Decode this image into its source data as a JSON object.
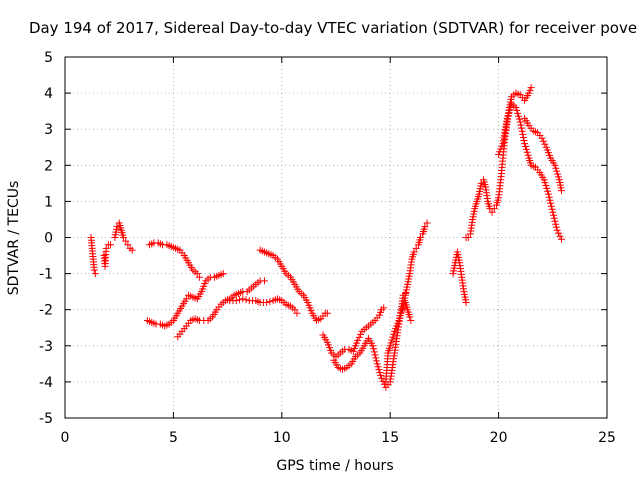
{
  "chart_data": {
    "type": "scatter",
    "title": "Day 194 of 2017, Sidereal Day-to-day VTEC variation (SDTVAR) for receiver pove",
    "xlabel": "GPS time / hours",
    "ylabel": "SDTVAR / TECUs",
    "xlim": [
      0,
      25
    ],
    "ylim": [
      -5,
      5
    ],
    "xticks": [
      0,
      5,
      10,
      15,
      20,
      25
    ],
    "yticks": [
      -5,
      -4,
      -3,
      -2,
      -1,
      0,
      1,
      2,
      3,
      4,
      5
    ],
    "x_tick_labels": [
      "0",
      "5",
      "10",
      "15",
      "20",
      "25"
    ],
    "y_tick_labels": [
      "-5",
      "-4",
      "-3",
      "-2",
      "-1",
      "0",
      "1",
      "2",
      "3",
      "4",
      "5"
    ],
    "grid": true,
    "marker": "plus",
    "series": [
      {
        "color": "#ff0000",
        "segments": [
          [
            [
              1.2,
              0.0
            ],
            [
              1.25,
              -0.3
            ],
            [
              1.3,
              -0.6
            ],
            [
              1.35,
              -0.9
            ],
            [
              1.4,
              -1.0
            ]
          ],
          [
            [
              1.8,
              -0.5
            ],
            [
              1.85,
              -0.8
            ],
            [
              1.9,
              -0.3
            ],
            [
              2.0,
              -0.2
            ],
            [
              2.1,
              -0.2
            ]
          ],
          [
            [
              2.3,
              0.0
            ],
            [
              2.4,
              0.3
            ],
            [
              2.5,
              0.4
            ],
            [
              2.6,
              0.2
            ],
            [
              2.7,
              0.0
            ],
            [
              2.8,
              -0.1
            ],
            [
              2.9,
              -0.2
            ],
            [
              3.0,
              -0.3
            ],
            [
              3.1,
              -0.35
            ]
          ],
          [
            [
              3.9,
              -0.2
            ],
            [
              4.1,
              -0.15
            ],
            [
              4.3,
              -0.15
            ],
            [
              4.5,
              -0.2
            ],
            [
              4.7,
              -0.2
            ],
            [
              4.9,
              -0.25
            ],
            [
              5.1,
              -0.3
            ],
            [
              5.3,
              -0.35
            ],
            [
              5.5,
              -0.5
            ],
            [
              5.7,
              -0.7
            ],
            [
              5.9,
              -0.9
            ],
            [
              6.1,
              -1.0
            ],
            [
              6.2,
              -1.1
            ]
          ],
          [
            [
              3.8,
              -2.3
            ],
            [
              4.0,
              -2.35
            ],
            [
              4.2,
              -2.4
            ],
            [
              4.4,
              -2.4
            ],
            [
              4.6,
              -2.45
            ],
            [
              4.8,
              -2.4
            ],
            [
              5.0,
              -2.3
            ],
            [
              5.2,
              -2.1
            ],
            [
              5.4,
              -1.9
            ],
            [
              5.6,
              -1.7
            ],
            [
              5.7,
              -1.6
            ],
            [
              5.9,
              -1.65
            ],
            [
              6.1,
              -1.7
            ],
            [
              6.3,
              -1.5
            ],
            [
              6.5,
              -1.2
            ],
            [
              6.7,
              -1.1
            ],
            [
              6.9,
              -1.1
            ],
            [
              7.1,
              -1.05
            ],
            [
              7.3,
              -1.0
            ]
          ],
          [
            [
              5.2,
              -2.75
            ],
            [
              5.4,
              -2.6
            ],
            [
              5.6,
              -2.45
            ],
            [
              5.8,
              -2.3
            ],
            [
              6.0,
              -2.25
            ],
            [
              6.2,
              -2.3
            ],
            [
              6.4,
              -2.3
            ],
            [
              6.6,
              -2.3
            ],
            [
              6.8,
              -2.2
            ],
            [
              7.0,
              -2.0
            ],
            [
              7.2,
              -1.85
            ],
            [
              7.4,
              -1.75
            ],
            [
              7.6,
              -1.7
            ],
            [
              7.8,
              -1.6
            ],
            [
              8.0,
              -1.55
            ],
            [
              8.2,
              -1.5
            ],
            [
              8.4,
              -1.5
            ],
            [
              8.6,
              -1.4
            ],
            [
              8.8,
              -1.3
            ],
            [
              9.0,
              -1.2
            ],
            [
              9.2,
              -1.2
            ]
          ],
          [
            [
              7.6,
              -1.75
            ],
            [
              7.9,
              -1.75
            ],
            [
              8.2,
              -1.7
            ],
            [
              8.5,
              -1.75
            ],
            [
              8.8,
              -1.75
            ],
            [
              9.0,
              -1.8
            ],
            [
              9.3,
              -1.8
            ],
            [
              9.6,
              -1.75
            ],
            [
              9.8,
              -1.7
            ],
            [
              10.0,
              -1.75
            ],
            [
              10.2,
              -1.85
            ],
            [
              10.4,
              -1.9
            ],
            [
              10.6,
              -2.0
            ],
            [
              10.7,
              -2.1
            ]
          ],
          [
            [
              9.0,
              -0.35
            ],
            [
              9.2,
              -0.4
            ],
            [
              9.4,
              -0.45
            ],
            [
              9.6,
              -0.5
            ],
            [
              9.8,
              -0.6
            ],
            [
              10.0,
              -0.8
            ],
            [
              10.2,
              -1.0
            ],
            [
              10.4,
              -1.1
            ],
            [
              10.6,
              -1.3
            ],
            [
              10.8,
              -1.5
            ],
            [
              11.0,
              -1.6
            ],
            [
              11.2,
              -1.8
            ],
            [
              11.4,
              -2.1
            ],
            [
              11.6,
              -2.3
            ],
            [
              11.8,
              -2.25
            ],
            [
              12.0,
              -2.1
            ],
            [
              12.1,
              -2.1
            ]
          ],
          [
            [
              11.9,
              -2.7
            ],
            [
              12.1,
              -2.9
            ],
            [
              12.3,
              -3.2
            ],
            [
              12.5,
              -3.3
            ],
            [
              12.7,
              -3.2
            ],
            [
              12.9,
              -3.1
            ],
            [
              13.1,
              -3.1
            ],
            [
              13.3,
              -3.15
            ],
            [
              13.5,
              -2.85
            ],
            [
              13.7,
              -2.6
            ],
            [
              13.9,
              -2.5
            ],
            [
              14.1,
              -2.4
            ],
            [
              14.3,
              -2.3
            ],
            [
              14.5,
              -2.15
            ],
            [
              14.6,
              -2.0
            ],
            [
              14.7,
              -1.95
            ]
          ],
          [
            [
              12.4,
              -3.4
            ],
            [
              12.6,
              -3.6
            ],
            [
              12.8,
              -3.65
            ],
            [
              13.0,
              -3.6
            ],
            [
              13.2,
              -3.5
            ],
            [
              13.4,
              -3.3
            ],
            [
              13.6,
              -3.2
            ],
            [
              13.8,
              -3.0
            ],
            [
              14.0,
              -2.8
            ],
            [
              14.2,
              -3.0
            ],
            [
              14.4,
              -3.5
            ],
            [
              14.6,
              -3.9
            ],
            [
              14.8,
              -4.15
            ],
            [
              15.0,
              -4.0
            ],
            [
              15.1,
              -3.6
            ],
            [
              15.2,
              -3.2
            ],
            [
              15.3,
              -2.8
            ],
            [
              15.4,
              -2.4
            ],
            [
              15.5,
              -2.0
            ],
            [
              15.6,
              -1.6
            ],
            [
              15.7,
              -1.55
            ]
          ],
          [
            [
              14.8,
              -4.0
            ],
            [
              14.9,
              -3.2
            ],
            [
              15.0,
              -3.0
            ],
            [
              15.2,
              -2.6
            ],
            [
              15.4,
              -2.3
            ],
            [
              15.5,
              -2.1
            ],
            [
              15.6,
              -1.9
            ],
            [
              15.7,
              -1.6
            ],
            [
              15.8,
              -1.3
            ],
            [
              15.9,
              -1.0
            ],
            [
              16.0,
              -0.6
            ],
            [
              16.1,
              -0.4
            ],
            [
              16.2,
              -0.3
            ],
            [
              16.3,
              -0.2
            ],
            [
              16.4,
              0.0
            ],
            [
              16.5,
              0.1
            ],
            [
              16.6,
              0.3
            ],
            [
              16.7,
              0.4
            ]
          ],
          [
            [
              15.7,
              -1.8
            ],
            [
              15.8,
              -2.0
            ],
            [
              15.9,
              -2.2
            ],
            [
              15.95,
              -2.3
            ]
          ],
          [
            [
              17.9,
              -1.0
            ],
            [
              18.0,
              -0.7
            ],
            [
              18.1,
              -0.4
            ],
            [
              18.2,
              -0.7
            ],
            [
              18.3,
              -1.1
            ],
            [
              18.4,
              -1.5
            ],
            [
              18.5,
              -1.8
            ]
          ],
          [
            [
              18.5,
              0.0
            ],
            [
              18.6,
              0.0
            ],
            [
              18.7,
              0.1
            ],
            [
              18.8,
              0.5
            ],
            [
              18.9,
              0.8
            ],
            [
              19.0,
              1.0
            ],
            [
              19.1,
              1.2
            ],
            [
              19.2,
              1.5
            ],
            [
              19.3,
              1.6
            ],
            [
              19.4,
              1.4
            ],
            [
              19.5,
              1.0
            ],
            [
              19.6,
              0.8
            ],
            [
              19.7,
              0.7
            ],
            [
              19.8,
              0.8
            ],
            [
              19.9,
              0.9
            ],
            [
              20.0,
              1.1
            ],
            [
              20.1,
              1.6
            ],
            [
              20.2,
              2.2
            ],
            [
              20.3,
              2.8
            ],
            [
              20.4,
              3.2
            ],
            [
              20.5,
              3.6
            ],
            [
              20.6,
              3.9
            ],
            [
              20.8,
              4.0
            ],
            [
              21.0,
              3.95
            ],
            [
              21.2,
              3.8
            ],
            [
              21.4,
              4.0
            ],
            [
              21.5,
              4.15
            ]
          ],
          [
            [
              20.0,
              2.3
            ],
            [
              20.2,
              2.6
            ],
            [
              20.4,
              3.3
            ],
            [
              20.6,
              3.7
            ],
            [
              20.8,
              3.6
            ],
            [
              21.0,
              3.2
            ],
            [
              21.2,
              2.6
            ],
            [
              21.4,
              2.2
            ],
            [
              21.5,
              2.0
            ],
            [
              21.7,
              1.95
            ],
            [
              21.9,
              1.8
            ],
            [
              22.1,
              1.6
            ],
            [
              22.3,
              1.2
            ],
            [
              22.5,
              0.7
            ],
            [
              22.7,
              0.2
            ],
            [
              22.9,
              -0.05
            ]
          ],
          [
            [
              21.2,
              3.3
            ],
            [
              21.4,
              3.1
            ],
            [
              21.6,
              2.95
            ],
            [
              21.8,
              2.9
            ],
            [
              22.0,
              2.75
            ],
            [
              22.2,
              2.5
            ],
            [
              22.4,
              2.2
            ],
            [
              22.6,
              2.0
            ],
            [
              22.8,
              1.6
            ],
            [
              22.9,
              1.3
            ]
          ]
        ]
      }
    ]
  }
}
